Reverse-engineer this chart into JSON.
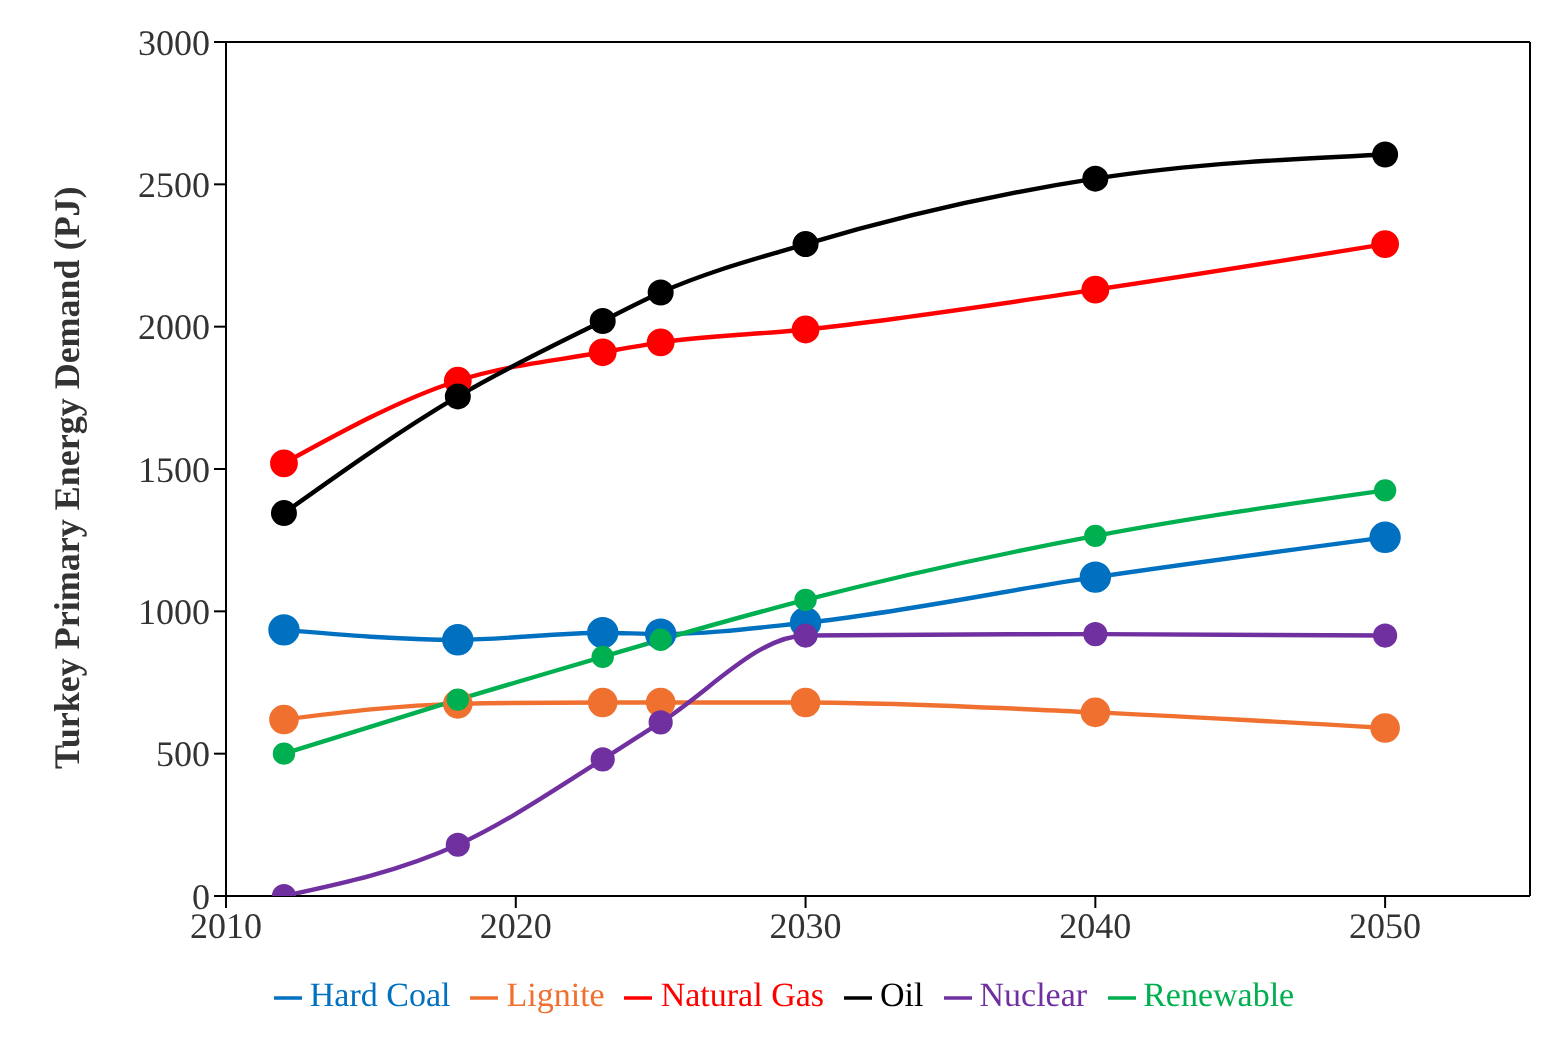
{
  "chart_data": {
    "type": "line",
    "ylabel": "Turkey Primary  Energy  Demand (PJ)",
    "x": [
      2012,
      2018,
      2023,
      2025,
      2030,
      2040,
      2050
    ],
    "series": [
      {
        "name": "Hard Coal",
        "color": "#0070c0",
        "values": [
          935,
          900,
          925,
          920,
          960,
          1120,
          1260
        ]
      },
      {
        "name": "Lignite",
        "color": "#f07030",
        "values": [
          620,
          675,
          680,
          680,
          680,
          645,
          590
        ]
      },
      {
        "name": "Natural Gas",
        "color": "#ff0000",
        "values": [
          1520,
          1810,
          1910,
          1945,
          1990,
          2130,
          2290
        ]
      },
      {
        "name": "Oil",
        "color": "#000000",
        "values": [
          1345,
          1755,
          2020,
          2120,
          2290,
          2520,
          2605
        ]
      },
      {
        "name": "Nuclear",
        "color": "#7030a0",
        "values": [
          0,
          180,
          480,
          610,
          915,
          920,
          915
        ]
      },
      {
        "name": "Renewable",
        "color": "#00b050",
        "values": [
          500,
          690,
          840,
          900,
          1040,
          1265,
          1425
        ]
      }
    ],
    "xlim": [
      2010,
      2055
    ],
    "xticks": [
      2010,
      2020,
      2030,
      2040,
      2050
    ],
    "ylim": [
      0,
      3000
    ],
    "yticks": [
      0,
      500,
      1000,
      1500,
      2000,
      2500,
      3000
    ],
    "grid": false,
    "legend": "bottom",
    "marker": "circle",
    "line_style": "solid"
  }
}
